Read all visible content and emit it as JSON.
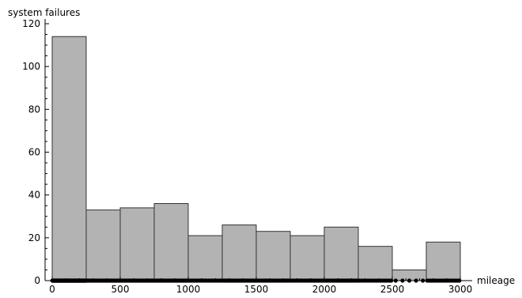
{
  "chart_data": {
    "type": "bar",
    "ylabel": "system failures",
    "xlabel": "mileage",
    "xlim": [
      0,
      3000
    ],
    "ylim": [
      0,
      120
    ],
    "bin_width": 250,
    "bins": [
      {
        "start": 0,
        "end": 250,
        "count": 114
      },
      {
        "start": 250,
        "end": 500,
        "count": 33
      },
      {
        "start": 500,
        "end": 750,
        "count": 34
      },
      {
        "start": 750,
        "end": 1000,
        "count": 36
      },
      {
        "start": 1000,
        "end": 1250,
        "count": 21
      },
      {
        "start": 1250,
        "end": 1500,
        "count": 26
      },
      {
        "start": 1500,
        "end": 1750,
        "count": 23
      },
      {
        "start": 1750,
        "end": 2000,
        "count": 21
      },
      {
        "start": 2000,
        "end": 2250,
        "count": 25
      },
      {
        "start": 2250,
        "end": 2500,
        "count": 16
      },
      {
        "start": 2500,
        "end": 2750,
        "count": 5
      },
      {
        "start": 2750,
        "end": 3000,
        "count": 18
      }
    ],
    "x_ticks": [
      0,
      500,
      1000,
      1500,
      2000,
      2500,
      3000
    ],
    "x_tick_labels": [
      "0",
      "500",
      "1000",
      "1500",
      "2000",
      "2500",
      "3000"
    ],
    "y_ticks": [
      0,
      20,
      40,
      60,
      80,
      100,
      120
    ],
    "y_tick_labels": [
      "0",
      "20",
      "40",
      "60",
      "80",
      "100",
      "120"
    ],
    "rug_point_color": "#000000",
    "bar_fill": "#b3b3b3",
    "bar_edge": "#333333",
    "grid": false,
    "legend": "none"
  }
}
